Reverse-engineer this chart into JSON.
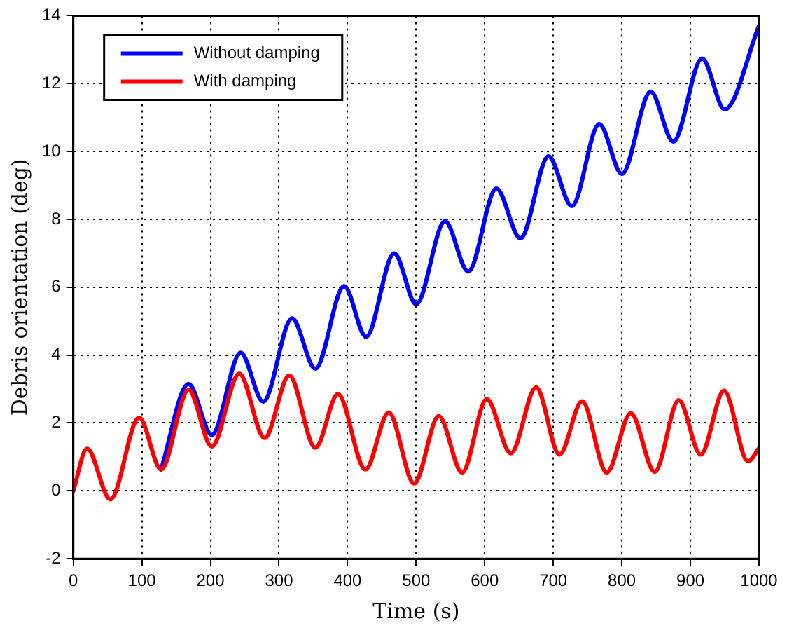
{
  "chart_data": {
    "type": "line",
    "xlabel": "Time (s)",
    "ylabel": "Debris orientation (deg)",
    "xlim": [
      0,
      1000
    ],
    "ylim": [
      -2,
      14
    ],
    "xticks": [
      0,
      100,
      200,
      300,
      400,
      500,
      600,
      700,
      800,
      900,
      1000
    ],
    "yticks": [
      -2,
      0,
      2,
      4,
      6,
      8,
      10,
      12,
      14
    ],
    "grid": true,
    "legend": "top left",
    "marker": "none",
    "line_style": "solid",
    "series": [
      {
        "name": "Without damping",
        "color": "#0000ff",
        "x": [
          128,
          168,
          202,
          244,
          277,
          319,
          353,
          395,
          427,
          468,
          500,
          542,
          576,
          617,
          652,
          693,
          727,
          767,
          800,
          842,
          875,
          917,
          950,
          1000
        ],
        "values": [
          0.63,
          3.15,
          1.65,
          4.07,
          2.63,
          5.08,
          3.6,
          6.03,
          4.54,
          7.0,
          5.5,
          7.94,
          6.46,
          8.91,
          7.44,
          9.86,
          8.39,
          10.81,
          9.34,
          11.76,
          10.29,
          12.74,
          11.24,
          13.7
        ]
      },
      {
        "name": "With damping",
        "color": "#ff0000",
        "x": [
          0,
          20,
          54,
          96,
          128,
          168,
          202,
          242,
          279,
          315,
          353,
          386,
          426,
          460,
          497,
          533,
          567,
          603,
          638,
          675,
          709,
          742,
          778,
          813,
          848,
          883,
          915,
          949,
          984,
          1000
        ],
        "values": [
          0,
          1.24,
          -0.25,
          2.16,
          0.63,
          2.97,
          1.31,
          3.45,
          1.56,
          3.4,
          1.27,
          2.85,
          0.63,
          2.31,
          0.22,
          2.2,
          0.54,
          2.7,
          1.11,
          3.05,
          1.07,
          2.64,
          0.54,
          2.29,
          0.56,
          2.67,
          1.07,
          2.95,
          0.87,
          1.25
        ]
      }
    ]
  }
}
